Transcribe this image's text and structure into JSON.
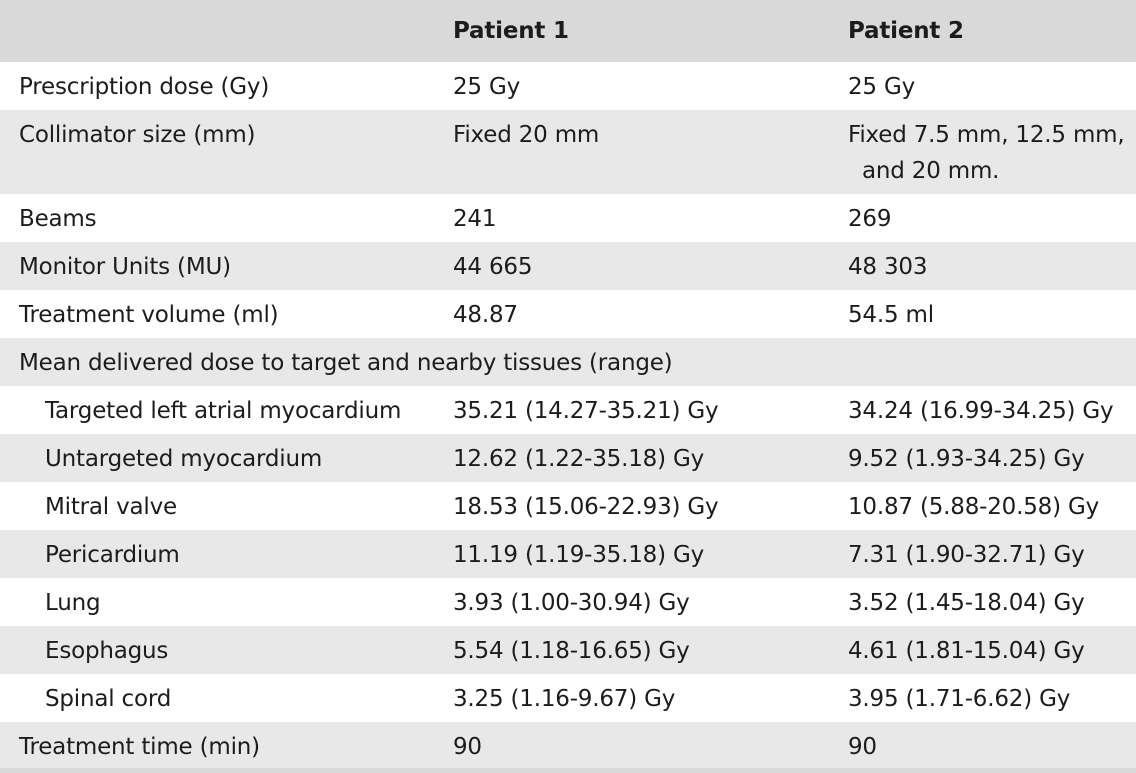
{
  "header": {
    "col0": "",
    "col1": "Patient 1",
    "col2": "Patient 2"
  },
  "rows": [
    {
      "label": "Prescription dose (Gy)",
      "p1": "25 Gy",
      "p2": "25 Gy"
    },
    {
      "label": "Collimator size (mm)",
      "p1": "Fixed 20 mm",
      "p2_line1": "Fixed 7.5 mm, 12.5 mm,",
      "p2_line2": "and 20 mm."
    },
    {
      "label": "Beams",
      "p1": "241",
      "p2": "269"
    },
    {
      "label": "Monitor Units (MU)",
      "p1": "44 665",
      "p2": "48 303"
    },
    {
      "label": "Treatment volume (ml)",
      "p1": "48.87",
      "p2": "54.5 ml"
    },
    {
      "label": "Mean delivered dose to target and nearby tissues (range)"
    },
    {
      "label": "Targeted left atrial myocardium",
      "p1": "35.21 (14.27-35.21) Gy",
      "p2": "34.24 (16.99-34.25) Gy"
    },
    {
      "label": "Untargeted myocardium",
      "p1": "12.62 (1.22-35.18) Gy",
      "p2": "9.52 (1.93-34.25) Gy"
    },
    {
      "label": "Mitral valve",
      "p1": "18.53 (15.06-22.93) Gy",
      "p2": "10.87 (5.88-20.58) Gy"
    },
    {
      "label": "Pericardium",
      "p1": "11.19 (1.19-35.18) Gy",
      "p2": "7.31 (1.90-32.71) Gy"
    },
    {
      "label": "Lung",
      "p1": "3.93 (1.00-30.94) Gy",
      "p2": "3.52 (1.45-18.04) Gy"
    },
    {
      "label": "Esophagus",
      "p1": "5.54 (1.18-16.65) Gy",
      "p2": "4.61 (1.81-15.04) Gy"
    },
    {
      "label": "Spinal cord",
      "p1": "3.25 (1.16-9.67) Gy",
      "p2": "3.95 (1.71-6.62) Gy"
    },
    {
      "label": "Treatment time (min)",
      "p1": "90",
      "p2": "90"
    }
  ]
}
